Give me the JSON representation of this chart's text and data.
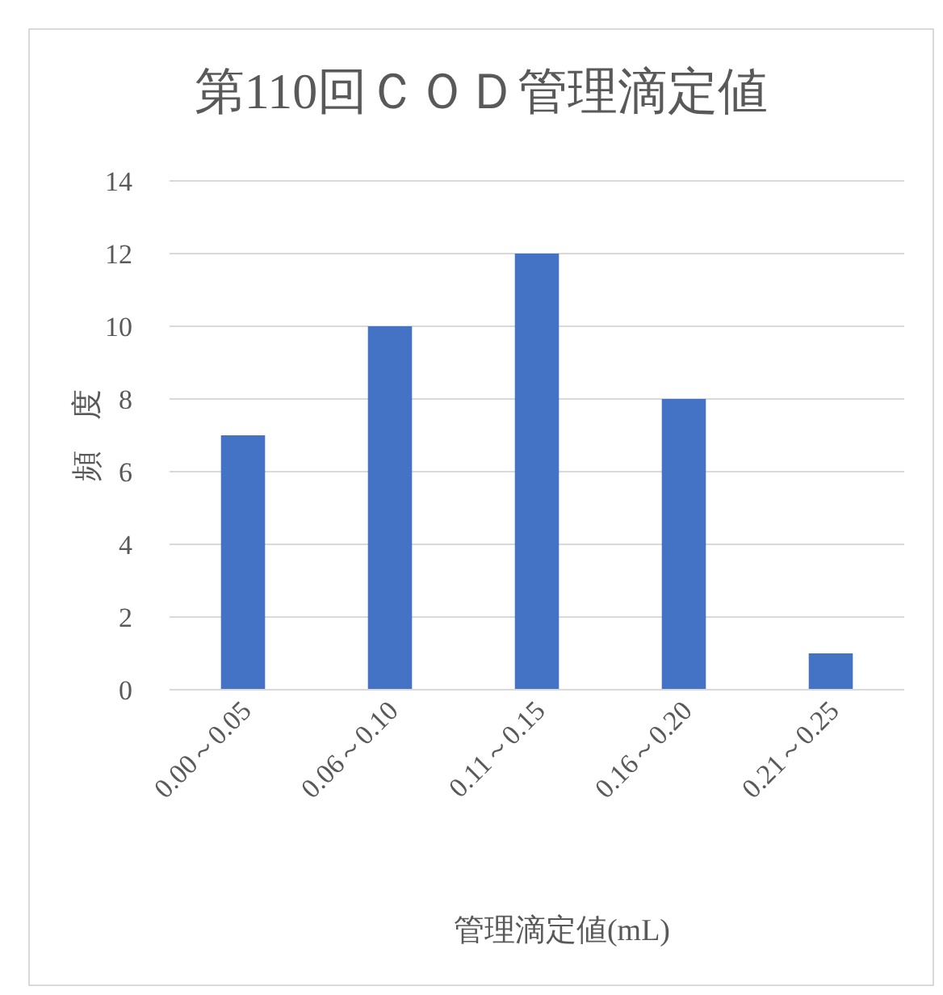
{
  "chart_data": {
    "type": "bar",
    "title": "第110回ＣＯＤ管理滴定値",
    "xlabel": "管理滴定値(mL)",
    "ylabel": "頻　度",
    "categories": [
      "0.00～0.05",
      "0.06～0.10",
      "0.11～0.15",
      "0.16～0.20",
      "0.21～0.25"
    ],
    "values": [
      7,
      10,
      12,
      8,
      1
    ],
    "color": "#4472c4",
    "ylim": [
      0,
      14
    ],
    "yticks": [
      0,
      2,
      4,
      6,
      8,
      10,
      12,
      14
    ],
    "grid": "y"
  }
}
